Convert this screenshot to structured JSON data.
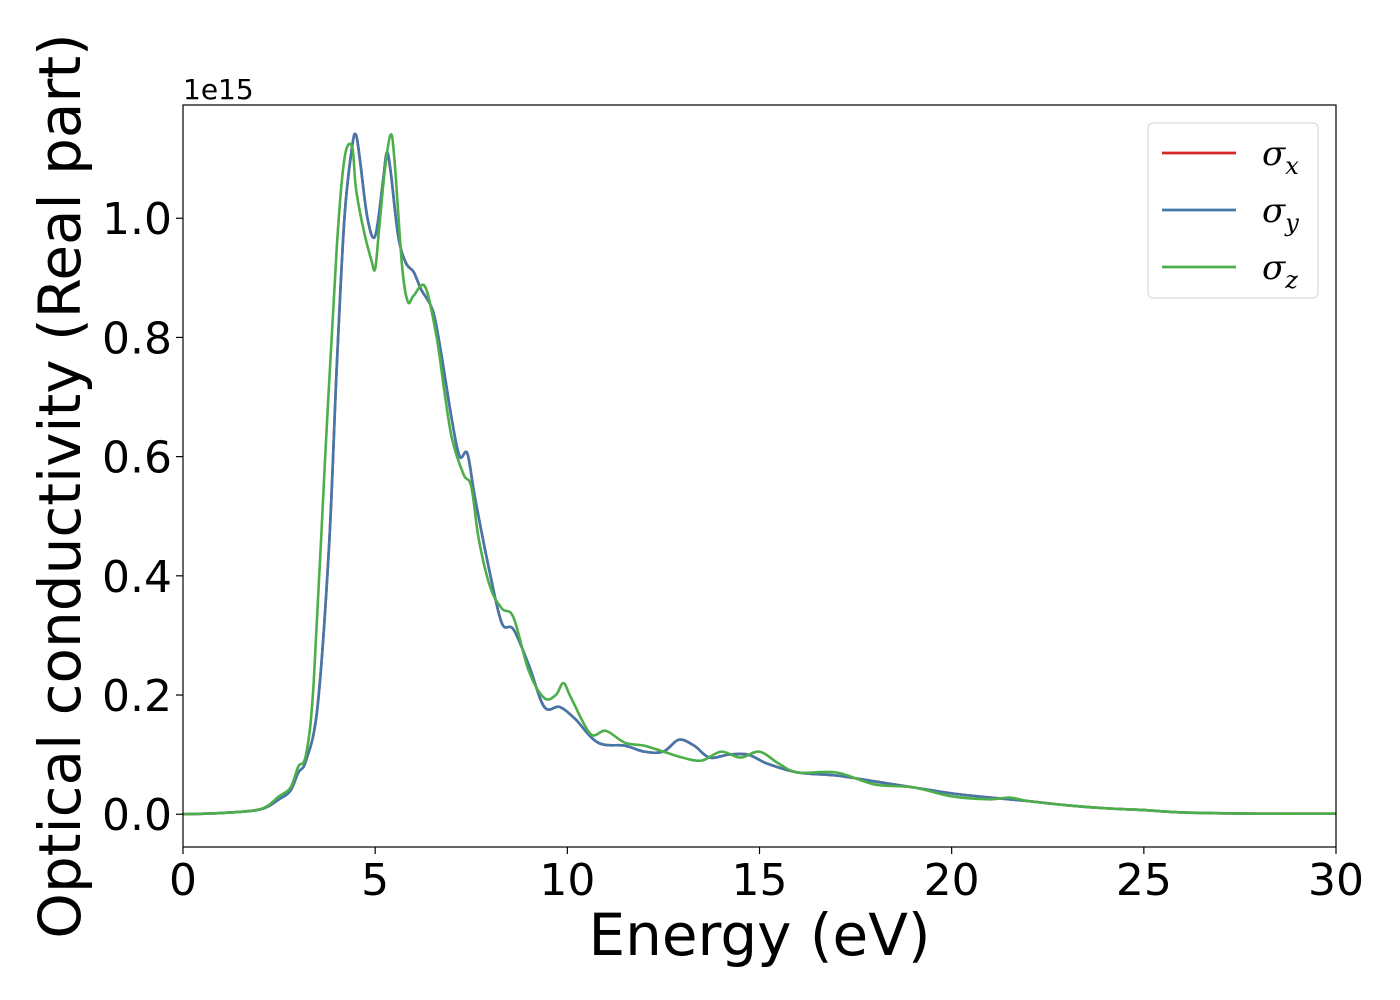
{
  "chart_data": {
    "type": "line",
    "xlabel": "Energy (eV)",
    "ylabel": "Optical conductivity (Real part)",
    "y_offset_label": "1e15",
    "xlim": [
      0,
      30
    ],
    "ylim": [
      -0.055,
      1.19
    ],
    "xticks": [
      0,
      5,
      10,
      15,
      20,
      25,
      30
    ],
    "xtick_labels": [
      "0",
      "5",
      "10",
      "15",
      "20",
      "25",
      "30"
    ],
    "yticks": [
      0.0,
      0.2,
      0.4,
      0.6,
      0.8,
      1.0
    ],
    "ytick_labels": [
      "0.0",
      "0.2",
      "0.4",
      "0.6",
      "0.8",
      "1.0"
    ],
    "grid": false,
    "legend_position": "top-right",
    "series": [
      {
        "name": "σx",
        "symbol": "σ",
        "subscript": "x",
        "color": "#d62728",
        "x": [
          0,
          1,
          2,
          2.5,
          2.8,
          3.0,
          3.2,
          3.5,
          3.8,
          4.0,
          4.2,
          4.4,
          4.5,
          4.6,
          4.8,
          5.0,
          5.2,
          5.3,
          5.4,
          5.6,
          5.8,
          6.0,
          6.2,
          6.5,
          6.7,
          7.0,
          7.2,
          7.4,
          7.6,
          8.0,
          8.3,
          8.6,
          9.0,
          9.4,
          9.8,
          10.2,
          10.8,
          11.5,
          12.0,
          12.5,
          12.9,
          13.3,
          13.7,
          14.2,
          14.7,
          15.2,
          16.0,
          17.0,
          18.0,
          19.0,
          20.0,
          21.0,
          22.0,
          23.0,
          24.0,
          25.0,
          26.0,
          28.0,
          30.0
        ],
        "values": [
          0.0,
          0.002,
          0.008,
          0.025,
          0.04,
          0.07,
          0.09,
          0.18,
          0.45,
          0.75,
          1.0,
          1.12,
          1.14,
          1.1,
          1.0,
          0.97,
          1.06,
          1.11,
          1.08,
          0.97,
          0.925,
          0.91,
          0.88,
          0.845,
          0.78,
          0.66,
          0.6,
          0.605,
          0.53,
          0.4,
          0.32,
          0.31,
          0.25,
          0.18,
          0.18,
          0.16,
          0.12,
          0.115,
          0.105,
          0.105,
          0.125,
          0.115,
          0.095,
          0.1,
          0.1,
          0.085,
          0.07,
          0.065,
          0.055,
          0.045,
          0.035,
          0.028,
          0.022,
          0.015,
          0.01,
          0.007,
          0.003,
          0.001,
          0.001
        ]
      },
      {
        "name": "σy",
        "symbol": "σ",
        "subscript": "y",
        "color": "#4477aa",
        "x": [
          0,
          1,
          2,
          2.5,
          2.8,
          3.0,
          3.2,
          3.5,
          3.8,
          4.0,
          4.2,
          4.4,
          4.5,
          4.6,
          4.8,
          5.0,
          5.2,
          5.3,
          5.4,
          5.6,
          5.8,
          6.0,
          6.2,
          6.5,
          6.7,
          7.0,
          7.2,
          7.4,
          7.6,
          8.0,
          8.3,
          8.6,
          9.0,
          9.4,
          9.8,
          10.2,
          10.8,
          11.5,
          12.0,
          12.5,
          12.9,
          13.3,
          13.7,
          14.2,
          14.7,
          15.2,
          16.0,
          17.0,
          18.0,
          19.0,
          20.0,
          21.0,
          22.0,
          23.0,
          24.0,
          25.0,
          26.0,
          28.0,
          30.0
        ],
        "values": [
          0.0,
          0.002,
          0.008,
          0.025,
          0.04,
          0.07,
          0.09,
          0.18,
          0.45,
          0.75,
          1.0,
          1.12,
          1.14,
          1.1,
          1.0,
          0.97,
          1.06,
          1.11,
          1.08,
          0.97,
          0.925,
          0.91,
          0.88,
          0.845,
          0.78,
          0.66,
          0.6,
          0.605,
          0.53,
          0.4,
          0.32,
          0.31,
          0.25,
          0.18,
          0.18,
          0.16,
          0.12,
          0.115,
          0.105,
          0.105,
          0.125,
          0.115,
          0.095,
          0.1,
          0.1,
          0.085,
          0.07,
          0.065,
          0.055,
          0.045,
          0.035,
          0.028,
          0.022,
          0.015,
          0.01,
          0.007,
          0.003,
          0.001,
          0.001
        ]
      },
      {
        "name": "σz",
        "symbol": "σ",
        "subscript": "z",
        "color": "#4daf4a",
        "x": [
          0,
          1,
          2,
          2.5,
          2.8,
          3.0,
          3.2,
          3.4,
          3.7,
          4.0,
          4.2,
          4.4,
          4.5,
          4.7,
          4.9,
          5.0,
          5.1,
          5.25,
          5.4,
          5.5,
          5.7,
          5.85,
          6.0,
          6.3,
          6.6,
          6.8,
          7.0,
          7.3,
          7.5,
          7.7,
          8.0,
          8.3,
          8.6,
          9.0,
          9.4,
          9.7,
          9.9,
          10.1,
          10.6,
          11.0,
          11.5,
          12.0,
          12.5,
          13.0,
          13.5,
          14.0,
          14.5,
          15.0,
          15.5,
          16.0,
          17.0,
          18.0,
          19.0,
          20.0,
          21.0,
          21.5,
          22.0,
          23.0,
          24.0,
          25.0,
          26.0,
          28.0,
          30.0
        ],
        "values": [
          0.0,
          0.002,
          0.008,
          0.03,
          0.045,
          0.08,
          0.1,
          0.22,
          0.6,
          0.95,
          1.1,
          1.12,
          1.05,
          0.98,
          0.93,
          0.915,
          0.98,
          1.08,
          1.14,
          1.1,
          0.92,
          0.86,
          0.87,
          0.885,
          0.8,
          0.71,
          0.63,
          0.57,
          0.55,
          0.46,
          0.38,
          0.345,
          0.33,
          0.24,
          0.195,
          0.2,
          0.22,
          0.195,
          0.135,
          0.14,
          0.12,
          0.115,
          0.105,
          0.095,
          0.09,
          0.105,
          0.095,
          0.105,
          0.085,
          0.07,
          0.07,
          0.05,
          0.045,
          0.03,
          0.025,
          0.028,
          0.022,
          0.015,
          0.01,
          0.007,
          0.003,
          0.001,
          0.001
        ]
      }
    ]
  }
}
